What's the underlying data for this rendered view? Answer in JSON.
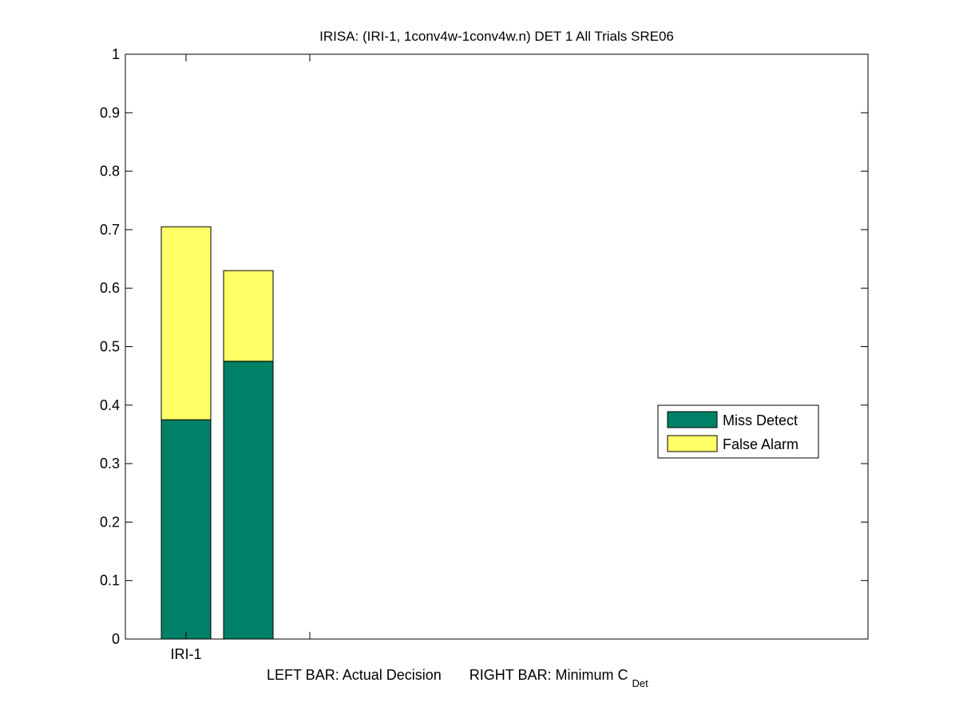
{
  "chart_data": {
    "type": "bar",
    "stacked": true,
    "title": "IRISA: (IRI-1, 1conv4w-1conv4w.n) DET 1 All Trials SRE06",
    "categories": [
      "IRI-1"
    ],
    "bars": [
      {
        "name": "LEFT BAR: Actual Decision",
        "category": "IRI-1",
        "miss_detect": 0.375,
        "false_alarm": 0.33,
        "total": 0.705
      },
      {
        "name": "RIGHT BAR: Minimum C_Det",
        "category": "IRI-1",
        "miss_detect": 0.475,
        "false_alarm": 0.155,
        "total": 0.63
      }
    ],
    "series": [
      {
        "name": "Miss Detect",
        "color": "#008066"
      },
      {
        "name": "False Alarm",
        "color": "#ffff66"
      }
    ],
    "xlabel_parts": {
      "left": "LEFT BAR: Actual Decision",
      "right": "RIGHT BAR: Minimum C",
      "right_subscript": "Det"
    },
    "ylim": [
      0,
      1
    ],
    "yticks": [
      "0",
      "0.1",
      "0.2",
      "0.3",
      "0.4",
      "0.5",
      "0.6",
      "0.7",
      "0.8",
      "0.9",
      "1"
    ],
    "grid": false,
    "legend_position": "right"
  }
}
